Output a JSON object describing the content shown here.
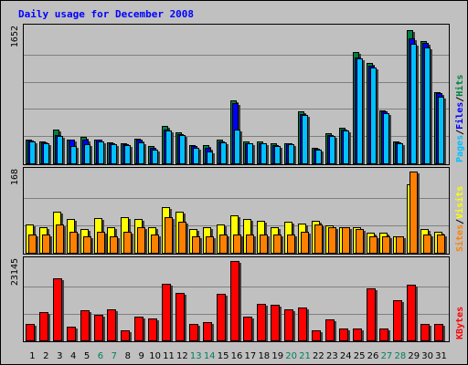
{
  "chart_data": {
    "type": "bar",
    "title": "Daily usage for December 2008",
    "days": [
      "1",
      "2",
      "3",
      "4",
      "5",
      "6",
      "7",
      "8",
      "9",
      "10",
      "11",
      "12",
      "13",
      "14",
      "15",
      "16",
      "17",
      "18",
      "19",
      "20",
      "21",
      "22",
      "23",
      "24",
      "25",
      "26",
      "27",
      "28",
      "29",
      "30",
      "31"
    ],
    "weekend_days": [
      "6",
      "7",
      "13",
      "14",
      "20",
      "21",
      "27",
      "28"
    ],
    "panels": [
      {
        "name": "hits-files-pages",
        "max_label": "1652",
        "ylim": [
          0,
          1652
        ],
        "legend": [
          "Pages",
          "/",
          "Files",
          "/",
          "Hits"
        ],
        "series": [
          {
            "name": "Hits",
            "color": "#008040",
            "values": [
              300,
              280,
              420,
              300,
              330,
              300,
              270,
              260,
              310,
              220,
              470,
              390,
              230,
              230,
              300,
              780,
              280,
              280,
              250,
              260,
              640,
              200,
              380,
              440,
              1360,
              1230,
              650,
              280,
              1630,
              1500,
              880
            ]
          },
          {
            "name": "Files",
            "color": "#0000ff",
            "values": [
              290,
              270,
              360,
              300,
              300,
              300,
              260,
              240,
              300,
              200,
              420,
              370,
              220,
              200,
              280,
              740,
              260,
              260,
              230,
              250,
              610,
              190,
              360,
              420,
              1300,
              1200,
              640,
              270,
              1530,
              1480,
              860
            ]
          },
          {
            "name": "Pages",
            "color": "#00c0ff",
            "values": [
              280,
              250,
              340,
              220,
              240,
              280,
              240,
              230,
              270,
              180,
              410,
              360,
              200,
              160,
              270,
              420,
              250,
              250,
              220,
              240,
              600,
              180,
              340,
              410,
              1290,
              1180,
              620,
              250,
              1460,
              1420,
              820
            ]
          }
        ]
      },
      {
        "name": "visits-sites",
        "max_label": "168",
        "ylim": [
          0,
          168
        ],
        "legend": [
          "Sites",
          "/",
          "Visits"
        ],
        "series": [
          {
            "name": "Visits",
            "color": "#ffff00",
            "values": [
              60,
              55,
              85,
              70,
              50,
              72,
              55,
              75,
              70,
              55,
              95,
              85,
              50,
              55,
              60,
              78,
              70,
              68,
              55,
              65,
              62,
              68,
              58,
              55,
              55,
              42,
              42,
              35,
              142,
              50,
              45
            ]
          },
          {
            "name": "Sites",
            "color": "#ff8000",
            "values": [
              40,
              40,
              60,
              45,
              35,
              45,
              35,
              45,
              55,
              40,
              75,
              65,
              35,
              35,
              40,
              40,
              40,
              40,
              40,
              40,
              45,
              60,
              55,
              55,
              50,
              35,
              35,
              35,
              168,
              40,
              40
            ]
          }
        ]
      },
      {
        "name": "kbytes",
        "max_label": "23145",
        "ylim": [
          0,
          23145
        ],
        "legend": [
          "KBytes"
        ],
        "series": [
          {
            "name": "KBytes",
            "color": "#ff0000",
            "values": [
              5000,
              8400,
              18200,
              4200,
              8900,
              7700,
              9100,
              3100,
              7100,
              6500,
              16600,
              13900,
              5000,
              5400,
              13700,
              23145,
              7100,
              10800,
              10400,
              9300,
              9800,
              3200,
              6200,
              3800,
              3700,
              15300,
              3600,
              11800,
              16300,
              5100,
              5100
            ]
          }
        ]
      }
    ],
    "colors": {
      "background": "#c0c0c0",
      "frame": "#000000",
      "grid": "#808080",
      "weekday_label": "#000000",
      "weekend_label": "#00805c",
      "bar_outline": "#000000",
      "bar_shadow": "#404040"
    }
  }
}
